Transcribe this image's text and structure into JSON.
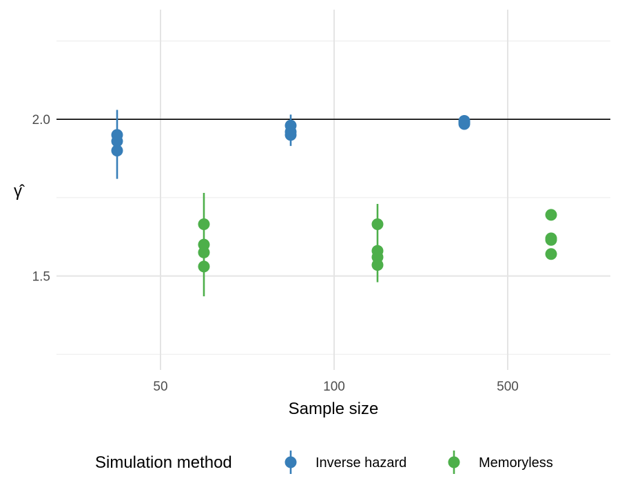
{
  "chart_data": {
    "type": "scatter",
    "title": "",
    "xlabel": "Sample size",
    "ylabel": "γ̂",
    "categories": [
      "50",
      "100",
      "500"
    ],
    "ylim": [
      1.2,
      2.35
    ],
    "y_ticks": [
      "1.5",
      "2.0"
    ],
    "y_minor_ticks": [
      1.25,
      1.75,
      2.25
    ],
    "reference_line": 2.0,
    "grid": true,
    "legend": {
      "title": "Simulation method",
      "position": "bottom"
    },
    "series": [
      {
        "name": "Inverse hazard",
        "color": "#377eb8",
        "groups": [
          {
            "category": "50",
            "points": [
              1.95,
              1.93,
              1.9
            ],
            "interval": [
              1.81,
              2.03
            ]
          },
          {
            "category": "100",
            "points": [
              1.98,
              1.96,
              1.95
            ],
            "interval": [
              1.915,
              2.015
            ]
          },
          {
            "category": "500",
            "points": [
              1.995,
              1.99,
              1.985
            ],
            "interval": [
              1.98,
              2.0
            ]
          }
        ]
      },
      {
        "name": "Memoryless",
        "color": "#4daf4a",
        "groups": [
          {
            "category": "50",
            "points": [
              1.665,
              1.6,
              1.575,
              1.53
            ],
            "interval": [
              1.435,
              1.765
            ]
          },
          {
            "category": "100",
            "points": [
              1.665,
              1.58,
              1.56,
              1.535
            ],
            "interval": [
              1.48,
              1.73
            ]
          },
          {
            "category": "500",
            "points": [
              1.695,
              1.62,
              1.615,
              1.57
            ],
            "interval": null
          }
        ]
      }
    ]
  }
}
